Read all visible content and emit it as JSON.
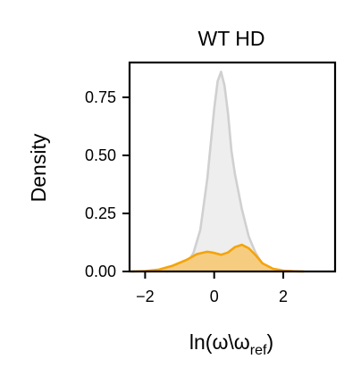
{
  "chart_data": {
    "type": "area",
    "title": "WT HD",
    "xlabel_main": "ln(ω\\ω",
    "xlabel_sub": "ref",
    "xlabel_close": ")",
    "ylabel": "Density",
    "xlim": [
      -2.45,
      3.5
    ],
    "ylim": [
      0,
      0.9
    ],
    "xticks": [
      -2,
      0,
      2
    ],
    "xtick_labels": [
      "−2",
      "0",
      "2"
    ],
    "yticks": [
      0.0,
      0.25,
      0.5,
      0.75
    ],
    "ytick_labels": [
      "0.00",
      "0.25",
      "0.50",
      "0.75"
    ],
    "grid": false,
    "legend": "none",
    "series": [
      {
        "color": "#d0d0d0",
        "fill": "#eeeeee",
        "x": [
          -1.4,
          -1.2,
          -1.0,
          -0.8,
          -0.6,
          -0.4,
          -0.2,
          0.0,
          0.1,
          0.2,
          0.3,
          0.4,
          0.5,
          0.6,
          0.8,
          1.0,
          1.2,
          1.4,
          1.6,
          1.8
        ],
        "y": [
          0.0,
          0.003,
          0.01,
          0.03,
          0.08,
          0.18,
          0.4,
          0.7,
          0.82,
          0.86,
          0.8,
          0.68,
          0.52,
          0.42,
          0.27,
          0.15,
          0.08,
          0.03,
          0.01,
          0.0
        ]
      },
      {
        "color": "#f5a30a",
        "fill": "#f6cd80",
        "x": [
          -2.4,
          -2.0,
          -1.6,
          -1.2,
          -0.8,
          -0.5,
          -0.2,
          0.0,
          0.2,
          0.4,
          0.6,
          0.8,
          1.0,
          1.2,
          1.4,
          1.7,
          2.0,
          2.3,
          2.6
        ],
        "y": [
          0.0,
          0.002,
          0.008,
          0.025,
          0.05,
          0.075,
          0.085,
          0.08,
          0.072,
          0.082,
          0.105,
          0.115,
          0.1,
          0.07,
          0.035,
          0.012,
          0.004,
          0.001,
          0.0
        ]
      }
    ]
  }
}
